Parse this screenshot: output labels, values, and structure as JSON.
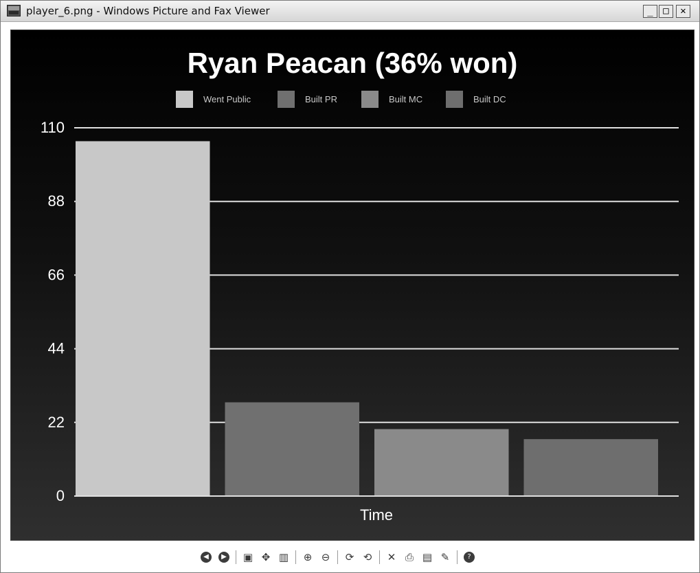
{
  "window": {
    "title": "player_6.png - Windows Picture and Fax Viewer",
    "controls": {
      "minimize": "_",
      "maximize": "□",
      "close": "✕"
    }
  },
  "chart_data": {
    "type": "bar",
    "title": "Ryan Peacan (36% won)",
    "xlabel": "Time",
    "ylabel": "",
    "ylim": [
      0,
      110
    ],
    "yticks": [
      0,
      22,
      44,
      66,
      88,
      110
    ],
    "grid": true,
    "legend_placement": "top-center",
    "series": [
      {
        "name": "Went Public",
        "values": [
          106
        ],
        "color": "#c8c8c8"
      },
      {
        "name": "Built PR",
        "values": [
          28
        ],
        "color": "#707070"
      },
      {
        "name": "Built MC",
        "values": [
          20
        ],
        "color": "#8a8a8a"
      },
      {
        "name": "Built DC",
        "values": [
          17
        ],
        "color": "#6e6e6e"
      }
    ],
    "background_top": "#000000",
    "background_bottom": "#2f2f2f",
    "gridline_color": "#e0e0e0",
    "text_color": "#ffffff"
  },
  "toolbar": {
    "items": [
      {
        "icon": "previous-image-icon",
        "glyph": "◀"
      },
      {
        "icon": "next-image-icon",
        "glyph": "▶"
      },
      {
        "icon": "best-fit-icon",
        "glyph": "▣"
      },
      {
        "icon": "actual-size-icon",
        "glyph": "✥"
      },
      {
        "icon": "slideshow-icon",
        "glyph": "▥"
      },
      {
        "icon": "zoom-in-icon",
        "glyph": "⊕"
      },
      {
        "icon": "zoom-out-icon",
        "glyph": "⊖"
      },
      {
        "icon": "rotate-clockwise-icon",
        "glyph": "⟳"
      },
      {
        "icon": "rotate-counterclockwise-icon",
        "glyph": "⟲"
      },
      {
        "icon": "delete-icon",
        "glyph": "✕"
      },
      {
        "icon": "print-icon",
        "glyph": "⎙"
      },
      {
        "icon": "save-icon",
        "glyph": "▤"
      },
      {
        "icon": "edit-icon",
        "glyph": "✎"
      },
      {
        "icon": "help-icon",
        "glyph": "?"
      }
    ]
  }
}
